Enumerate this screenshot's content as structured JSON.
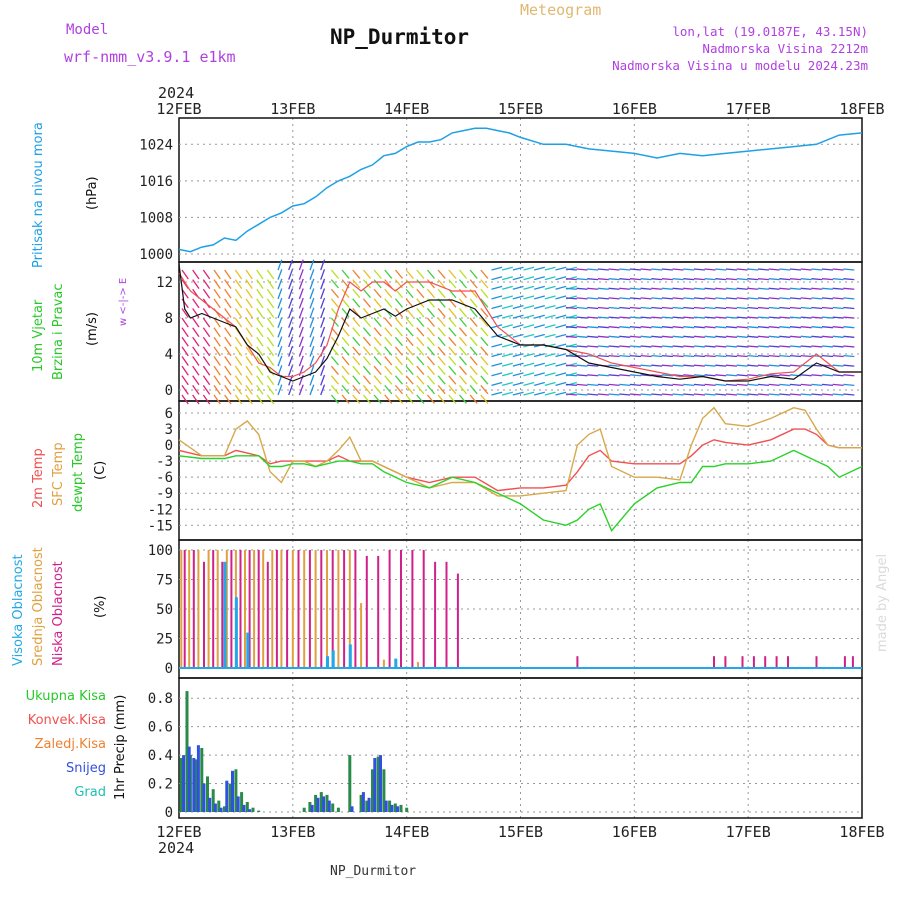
{
  "header": {
    "model_label": "Model",
    "model_name": "wrf-nmm_v3.9.1 e1km",
    "title": "NP_Durmitor",
    "subtitle": "Meteogram",
    "lonlat": "lon,lat (19.0187E, 43.15N)",
    "altitude": "Nadmorska Visina 2212m",
    "model_altitude": "Nadmorska Visina u modelu 2024.23m",
    "year": "2024",
    "footer_title": "NP_Durmitor",
    "watermark": "made by Angel"
  },
  "colors": {
    "pressure": "#1ea0e6",
    "temp2m": "#f05050",
    "sfc": "#d8a84a",
    "dew": "#28d228",
    "high_cloud": "#22a8e8",
    "mid_cloud": "#e0a040",
    "low_cloud": "#d0208a",
    "total_precip": "#2a8a4a",
    "snow": "#3050e0",
    "purple": "#b040e0"
  },
  "x_axis": {
    "top_labels": [
      "12FEB",
      "13FEB",
      "14FEB",
      "15FEB",
      "16FEB",
      "17FEB",
      "18FEB"
    ],
    "bottom_labels": [
      "12FEB",
      "13FEB",
      "14FEB",
      "15FEB",
      "16FEB",
      "17FEB",
      "18FEB"
    ]
  },
  "panel_labels": {
    "pressure": [
      "Pritisak na nivou mora",
      "(hPa)"
    ],
    "wind": [
      "10m Vjetar",
      "Brzina i Pravac",
      "(m/s)"
    ],
    "wind_compass": "w <-|-> E",
    "temp": [
      "2m Temp",
      "SFC Temp",
      "dewpt Temp",
      "(C)"
    ],
    "cloud": [
      "Visoka Oblacnost",
      "Srednja Oblacnost",
      "Niska Oblacnost",
      "(%)"
    ],
    "precip_legend": [
      "Ukupna Kisa",
      "Konvek.Kisa",
      "Zaledj.Kisa",
      "Snijeg",
      "Grad"
    ],
    "precip_ylabel": "1hr Precip (mm)"
  },
  "chart_data": [
    {
      "type": "line",
      "name": "pressure",
      "ylabel": "(hPa)",
      "ylim": [
        1000,
        1028
      ],
      "yticks": [
        1000,
        1008,
        1016,
        1024
      ],
      "x": [
        0,
        0.1,
        0.2,
        0.3,
        0.4,
        0.5,
        0.6,
        0.7,
        0.8,
        0.9,
        1.0,
        1.1,
        1.2,
        1.3,
        1.4,
        1.5,
        1.6,
        1.7,
        1.8,
        1.9,
        2.0,
        2.1,
        2.2,
        2.3,
        2.4,
        2.5,
        2.6,
        2.7,
        2.8,
        2.9,
        3.0,
        3.2,
        3.4,
        3.6,
        3.8,
        4.0,
        4.2,
        4.4,
        4.6,
        4.8,
        5.0,
        5.2,
        5.4,
        5.6,
        5.8,
        6.0
      ],
      "values": [
        1001,
        1000.5,
        1001.5,
        1002,
        1003.5,
        1003,
        1005,
        1006.5,
        1008,
        1009,
        1010.5,
        1011,
        1012.5,
        1014.5,
        1016,
        1017,
        1018.5,
        1019.5,
        1021.5,
        1022,
        1023.5,
        1024.5,
        1024.5,
        1025,
        1026.5,
        1027,
        1027.5,
        1027.5,
        1027,
        1026.5,
        1025.5,
        1024,
        1024,
        1023,
        1022.5,
        1022,
        1021,
        1022,
        1021.5,
        1022,
        1022.5,
        1023,
        1023.5,
        1024,
        1026,
        1026.5
      ],
      "grid": true
    },
    {
      "type": "line",
      "name": "wind",
      "ylabel": "(m/s)",
      "ylim": [
        -1,
        14
      ],
      "yticks": [
        0,
        4,
        8,
        12
      ],
      "series": [
        {
          "name": "speed",
          "x": [
            0,
            0.05,
            0.1,
            0.2,
            0.3,
            0.4,
            0.5,
            0.6,
            0.7,
            0.8,
            0.9,
            1.0,
            1.1,
            1.2,
            1.3,
            1.4,
            1.5,
            1.6,
            1.7,
            1.8,
            1.9,
            2.0,
            2.2,
            2.4,
            2.6,
            2.8,
            3.0,
            3.2,
            3.4,
            3.6,
            3.8,
            4.0,
            4.2,
            4.4,
            4.6,
            4.8,
            5.0,
            5.2,
            5.4,
            5.6,
            5.8,
            6.0
          ],
          "values": [
            14,
            9,
            8,
            8.5,
            8,
            7.5,
            7,
            5,
            4,
            2,
            1.5,
            1,
            1.5,
            2,
            3.5,
            6,
            9,
            8,
            8.5,
            9,
            8.2,
            9,
            10,
            10,
            9,
            6,
            5,
            5,
            4.5,
            3,
            2.5,
            2,
            1.5,
            1.2,
            1.5,
            1,
            1,
            1.5,
            1.2,
            3,
            2,
            2
          ]
        },
        {
          "name": "gust",
          "x": [
            0,
            0.1,
            0.2,
            0.3,
            0.4,
            0.5,
            0.6,
            0.7,
            0.8,
            0.9,
            1.0,
            1.1,
            1.2,
            1.3,
            1.4,
            1.5,
            1.6,
            1.7,
            1.8,
            1.9,
            2.0,
            2.2,
            2.4,
            2.6,
            2.8,
            3.0,
            3.2,
            3.4,
            3.6,
            3.8,
            4.0,
            4.2,
            4.4,
            4.6,
            4.8,
            5.0,
            5.2,
            5.4,
            5.6,
            5.8,
            6.0
          ],
          "values": [
            13,
            11,
            10,
            9,
            8,
            7,
            5,
            3,
            2.5,
            1.5,
            1.5,
            2,
            3,
            5,
            9,
            12,
            11,
            12,
            12,
            11,
            12,
            12,
            11,
            11,
            7,
            5,
            5,
            4.5,
            4,
            3,
            2.5,
            2,
            1.5,
            1.5,
            1,
            1.2,
            1.8,
            2,
            4,
            2,
            2
          ]
        }
      ],
      "grid": true
    },
    {
      "type": "line",
      "name": "temperature",
      "ylabel": "(C)",
      "ylim": [
        -17,
        7.5
      ],
      "yticks": [
        -15,
        -12,
        -9,
        -6,
        -3,
        0,
        3,
        6
      ],
      "x": [
        0,
        0.2,
        0.4,
        0.5,
        0.6,
        0.7,
        0.8,
        0.9,
        1.0,
        1.1,
        1.2,
        1.3,
        1.4,
        1.5,
        1.6,
        1.7,
        1.8,
        2.0,
        2.2,
        2.4,
        2.6,
        2.8,
        3.0,
        3.2,
        3.4,
        3.5,
        3.6,
        3.7,
        3.8,
        4.0,
        4.2,
        4.4,
        4.5,
        4.6,
        4.7,
        4.8,
        5.0,
        5.2,
        5.4,
        5.5,
        5.6,
        5.7,
        5.8,
        6.0
      ],
      "series": [
        {
          "name": "2m Temp",
          "values": [
            -1,
            -2,
            -2,
            -1,
            -1.5,
            -2,
            -3.5,
            -3,
            -3,
            -3,
            -3,
            -3,
            -2,
            -3,
            -3,
            -3,
            -4,
            -6,
            -7,
            -6,
            -6,
            -8.5,
            -8,
            -8,
            -7.5,
            -5,
            -2,
            -1,
            -3,
            -3.5,
            -3.5,
            -3.5,
            -2,
            0,
            1,
            0.5,
            0,
            1,
            3,
            3,
            2,
            0,
            -0.5,
            -0.5
          ]
        },
        {
          "name": "SFC Temp",
          "values": [
            1,
            -2,
            -2,
            3,
            4.5,
            2,
            -5,
            -7,
            -3,
            -3,
            -4,
            -3,
            -1,
            1.5,
            -3,
            -3,
            -4,
            -6,
            -8,
            -7,
            -7,
            -9.5,
            -9.5,
            -9,
            -8.5,
            0,
            2,
            3,
            -4,
            -6,
            -6,
            -6.5,
            0,
            5,
            7,
            4,
            3.5,
            5,
            7,
            6.5,
            3,
            0,
            -0.5,
            -0.5
          ]
        },
        {
          "name": "dewpt Temp",
          "values": [
            -2,
            -2.5,
            -2.5,
            -2,
            -2,
            -2,
            -4,
            -4,
            -3.5,
            -3.5,
            -4,
            -3.5,
            -3,
            -3,
            -3.5,
            -3.5,
            -5,
            -7,
            -8,
            -6,
            -7,
            -9,
            -11,
            -14,
            -15,
            -14,
            -12,
            -11,
            -16,
            -11,
            -8,
            -7,
            -7,
            -4,
            -4,
            -3.5,
            -3.5,
            -3,
            -1,
            -2,
            -3,
            -4,
            -6,
            -4
          ]
        }
      ],
      "grid": true
    },
    {
      "type": "bar",
      "name": "cloud cover",
      "ylabel": "(%)",
      "ylim": [
        0,
        100
      ],
      "yticks": [
        0,
        25,
        50,
        75,
        100
      ],
      "series": [
        {
          "name": "Niska Oblacnost",
          "x": [
            0.05,
            0.13,
            0.22,
            0.3,
            0.38,
            0.46,
            0.54,
            0.62,
            0.7,
            0.78,
            0.86,
            0.95,
            1.05,
            1.15,
            1.25,
            1.35,
            1.45,
            1.55,
            1.65,
            1.75,
            1.85,
            1.95,
            2.05,
            2.15,
            2.25,
            2.35,
            2.45,
            3.5,
            4.7,
            4.8,
            4.95,
            5.05,
            5.15,
            5.25,
            5.35,
            5.6,
            5.85,
            5.92
          ],
          "values": [
            100,
            100,
            90,
            100,
            90,
            100,
            100,
            100,
            100,
            90,
            100,
            100,
            100,
            100,
            100,
            100,
            100,
            100,
            95,
            95,
            100,
            100,
            100,
            100,
            90,
            90,
            80,
            10,
            10,
            10,
            10,
            10,
            10,
            10,
            10,
            10,
            10,
            10
          ]
        },
        {
          "name": "Srednja Oblacnost",
          "x": [
            0.02,
            0.09,
            0.17,
            0.26,
            0.34,
            0.42,
            0.5,
            0.58,
            0.66,
            0.74,
            0.82,
            0.9,
            1.0,
            1.1,
            1.2,
            1.3,
            1.4,
            1.5,
            1.6,
            1.8,
            2.1
          ],
          "values": [
            100,
            100,
            100,
            100,
            100,
            100,
            100,
            100,
            100,
            100,
            100,
            100,
            100,
            100,
            100,
            100,
            100,
            100,
            55,
            7,
            5
          ]
        },
        {
          "name": "Visoka Oblacnost",
          "x": [
            0.4,
            0.5,
            0.6,
            1.3,
            1.35,
            1.5,
            1.9
          ],
          "values": [
            90,
            60,
            30,
            10,
            15,
            20,
            8
          ]
        }
      ],
      "grid": true
    },
    {
      "type": "bar",
      "name": "precipitation",
      "ylabel": "1hr Precip (mm)",
      "ylim": [
        0,
        0.9
      ],
      "yticks": [
        0,
        0.2,
        0.4,
        0.6,
        0.8
      ],
      "series": [
        {
          "name": "Ukupna Kisa",
          "x": [
            0.02,
            0.07,
            0.1,
            0.15,
            0.2,
            0.25,
            0.3,
            0.35,
            0.4,
            0.45,
            0.5,
            0.55,
            0.6,
            0.65,
            0.7,
            1.1,
            1.15,
            1.2,
            1.25,
            1.3,
            1.35,
            1.4,
            1.5,
            1.6,
            1.65,
            1.7,
            1.75,
            1.8,
            1.85,
            1.9,
            1.95,
            2.0
          ],
          "values": [
            0.38,
            0.85,
            0.4,
            0.37,
            0.45,
            0.25,
            0.16,
            0.08,
            0.04,
            0.2,
            0.3,
            0.14,
            0.07,
            0.03,
            0.01,
            0.03,
            0.07,
            0.12,
            0.14,
            0.12,
            0.06,
            0.03,
            0.4,
            0.12,
            0.08,
            0.3,
            0.39,
            0.3,
            0.08,
            0.06,
            0.05,
            0.03
          ]
        },
        {
          "name": "Snijeg",
          "x": [
            0.04,
            0.09,
            0.13,
            0.17,
            0.22,
            0.27,
            0.32,
            0.37,
            0.42,
            0.47,
            0.52,
            0.57,
            0.62,
            1.17,
            1.22,
            1.27,
            1.32,
            1.52,
            1.62,
            1.67,
            1.72,
            1.77,
            1.82,
            1.87,
            1.92
          ],
          "values": [
            0.4,
            0.46,
            0.38,
            0.47,
            0.2,
            0.1,
            0.06,
            0.03,
            0.22,
            0.29,
            0.11,
            0.05,
            0.02,
            0.05,
            0.1,
            0.11,
            0.08,
            0.04,
            0.14,
            0.1,
            0.38,
            0.4,
            0.08,
            0.05,
            0.04
          ]
        }
      ],
      "grid": true
    }
  ]
}
